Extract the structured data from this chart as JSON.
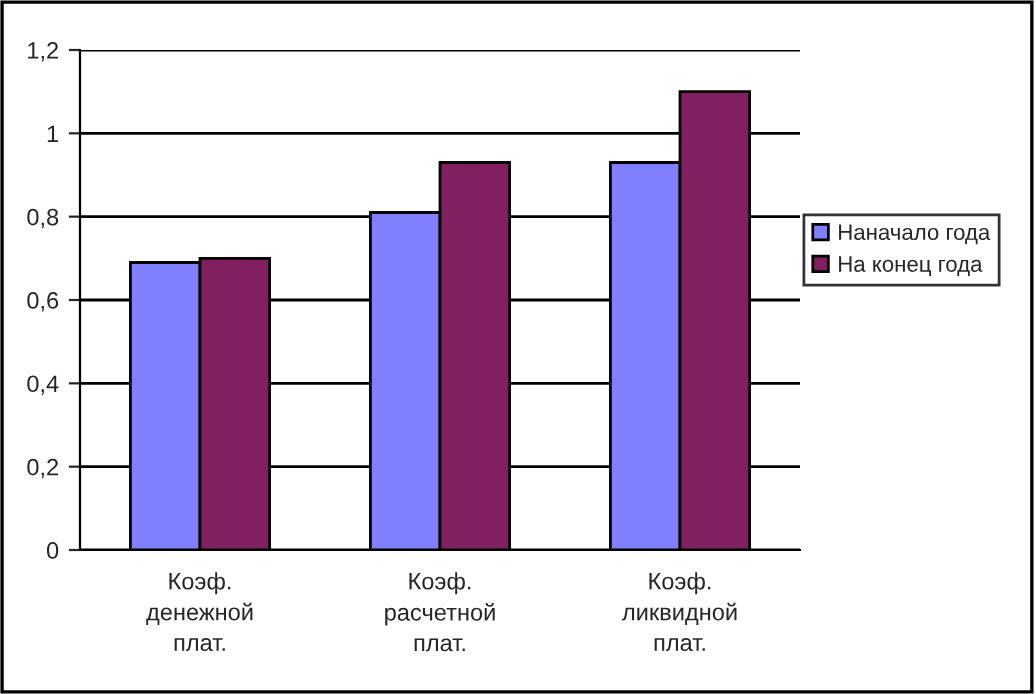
{
  "chart_data": {
    "type": "bar",
    "categories": [
      "Коэф.\nденежной\nплат.",
      "Коэф.\nрасчетной\nплат.",
      "Коэф.\nликвидной\nплат."
    ],
    "series": [
      {
        "name": "Наначало года",
        "color": "#8080ff",
        "values": [
          0.69,
          0.81,
          0.93
        ]
      },
      {
        "name": "На конец года",
        "color": "#802060",
        "values": [
          0.7,
          0.93,
          1.1
        ]
      }
    ],
    "ylim": [
      0,
      1.2
    ],
    "yticks": [
      0,
      {
        "value": 0.2,
        "label": "0,2"
      },
      {
        "value": 0.4,
        "label": "0,4"
      },
      {
        "value": 0.6,
        "label": "0,6"
      },
      {
        "value": 0.8,
        "label": "0,8"
      },
      1,
      {
        "value": 1.2,
        "label": "1,2"
      }
    ],
    "grid": "y",
    "legend": "right"
  }
}
